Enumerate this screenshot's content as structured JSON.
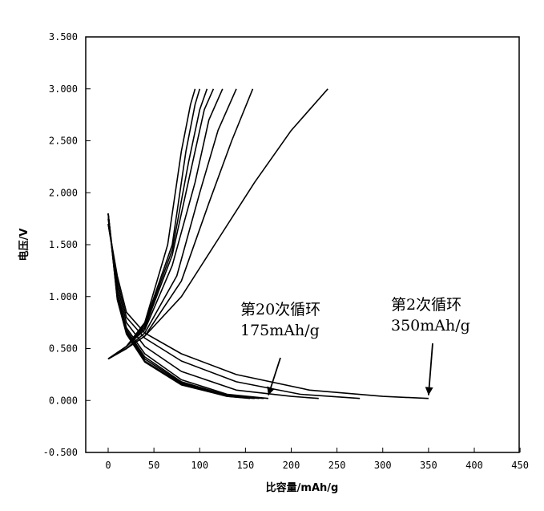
{
  "chart_data": {
    "type": "line",
    "title": "",
    "xlabel": "比容量/mAh/g",
    "ylabel": "电压/V",
    "xlim": [
      -25,
      450
    ],
    "ylim": [
      -0.5,
      3.5
    ],
    "x_ticks": [
      "0",
      "50",
      "100",
      "150",
      "200",
      "250",
      "300",
      "350",
      "400",
      "450"
    ],
    "y_ticks": [
      "-0.500",
      "0.000",
      "0.500",
      "1.000",
      "1.500",
      "2.000",
      "2.500",
      "3.000",
      "3.500"
    ],
    "grid": false,
    "legend": "none",
    "line_color": "#000000",
    "series": [
      {
        "x": [
          0,
          10,
          20,
          40,
          80,
          140,
          220,
          300,
          350
        ],
        "y": [
          1.7,
          1.2,
          0.85,
          0.65,
          0.45,
          0.25,
          0.1,
          0.04,
          0.02
        ]
      },
      {
        "x": [
          0,
          20,
          40,
          80,
          120,
          160,
          200,
          240
        ],
        "y": [
          0.4,
          0.5,
          0.62,
          1.0,
          1.55,
          2.1,
          2.6,
          3.0
        ]
      },
      {
        "x": [
          0,
          10,
          20,
          40,
          80,
          140,
          210,
          275
        ],
        "y": [
          1.7,
          1.15,
          0.8,
          0.6,
          0.38,
          0.18,
          0.06,
          0.02
        ]
      },
      {
        "x": [
          0,
          20,
          40,
          80,
          110,
          135,
          158
        ],
        "y": [
          0.4,
          0.5,
          0.62,
          1.15,
          1.9,
          2.5,
          3.0
        ]
      },
      {
        "x": [
          0,
          10,
          20,
          40,
          80,
          140,
          200,
          230
        ],
        "y": [
          1.75,
          1.1,
          0.75,
          0.52,
          0.28,
          0.1,
          0.04,
          0.02
        ]
      },
      {
        "x": [
          0,
          20,
          40,
          75,
          100,
          120,
          140
        ],
        "y": [
          0.4,
          0.5,
          0.65,
          1.2,
          2.0,
          2.6,
          3.0
        ]
      },
      {
        "x": [
          0,
          10,
          20,
          40,
          80,
          130,
          175
        ],
        "y": [
          1.8,
          1.05,
          0.7,
          0.45,
          0.2,
          0.06,
          0.02
        ]
      },
      {
        "x": [
          0,
          20,
          40,
          70,
          95,
          110,
          125
        ],
        "y": [
          0.4,
          0.52,
          0.68,
          1.3,
          2.1,
          2.7,
          3.0
        ]
      },
      {
        "x": [
          0,
          10,
          20,
          40,
          80,
          130,
          170
        ],
        "y": [
          1.8,
          1.0,
          0.68,
          0.42,
          0.18,
          0.05,
          0.02
        ]
      },
      {
        "x": [
          0,
          20,
          40,
          70,
          90,
          105,
          115
        ],
        "y": [
          0.4,
          0.52,
          0.7,
          1.4,
          2.2,
          2.8,
          3.0
        ]
      },
      {
        "x": [
          0,
          10,
          20,
          40,
          80,
          130,
          165
        ],
        "y": [
          1.8,
          1.0,
          0.66,
          0.4,
          0.17,
          0.05,
          0.02
        ]
      },
      {
        "x": [
          0,
          20,
          40,
          70,
          88,
          100,
          108
        ],
        "y": [
          0.4,
          0.52,
          0.72,
          1.45,
          2.3,
          2.8,
          3.0
        ]
      },
      {
        "x": [
          0,
          10,
          20,
          40,
          80,
          130,
          160
        ],
        "y": [
          1.8,
          0.98,
          0.65,
          0.38,
          0.16,
          0.04,
          0.02
        ]
      },
      {
        "x": [
          0,
          20,
          40,
          70,
          85,
          95,
          100
        ],
        "y": [
          0.4,
          0.52,
          0.74,
          1.5,
          2.4,
          2.85,
          3.0
        ]
      },
      {
        "x": [
          0,
          10,
          20,
          40,
          80,
          130,
          155
        ],
        "y": [
          1.8,
          0.97,
          0.64,
          0.37,
          0.15,
          0.04,
          0.02
        ]
      },
      {
        "x": [
          0,
          20,
          40,
          65,
          80,
          90,
          95
        ],
        "y": [
          0.4,
          0.52,
          0.75,
          1.5,
          2.4,
          2.85,
          3.0
        ]
      }
    ],
    "annotations": [
      {
        "line1": "第20次循环",
        "line2": "175mAh/g",
        "target_x": 175,
        "target_y": 0.02
      },
      {
        "line1": "第2次循环",
        "line2": "350mAh/g",
        "target_x": 350,
        "target_y": 0.02
      }
    ]
  }
}
